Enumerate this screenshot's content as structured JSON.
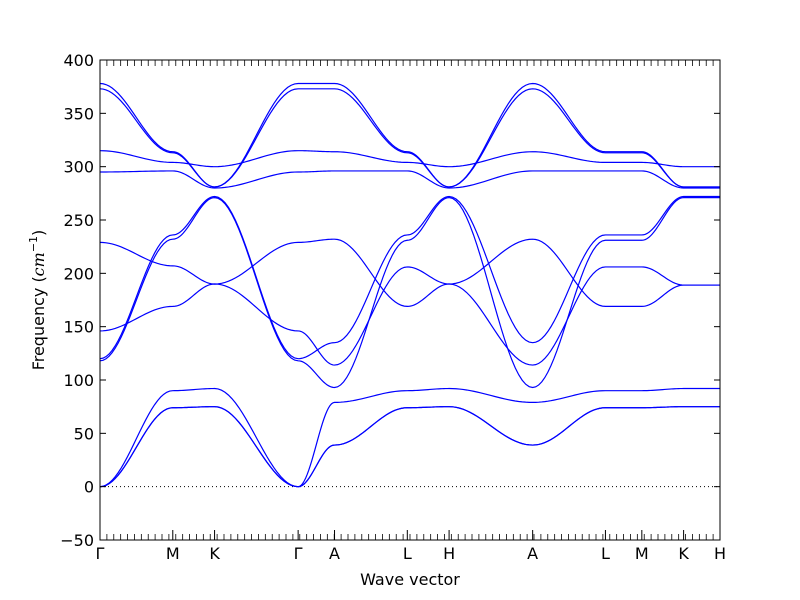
{
  "chart_data": {
    "type": "line",
    "title": "",
    "xlabel": "Wave vector",
    "ylabel": {
      "prefix": "Frequency (",
      "unit": "cm",
      "unit_exp": "−1",
      "suffix": ")"
    },
    "ylim": [
      -50,
      400
    ],
    "yticks": [
      -50,
      0,
      50,
      100,
      150,
      200,
      250,
      300,
      350,
      400
    ],
    "ytick_labels": [
      "−50",
      "0",
      "50",
      "100",
      "150",
      "200",
      "250",
      "300",
      "350",
      "400"
    ],
    "x_points": [
      {
        "label": "Γ",
        "x": 0
      },
      {
        "label": "M",
        "x": 0.54
      },
      {
        "label": "K",
        "x": 0.85
      },
      {
        "label": "Γ",
        "x": 1.47
      },
      {
        "label": "A",
        "x": 1.74
      },
      {
        "label": "L",
        "x": 2.28
      },
      {
        "label": "H",
        "x": 2.59
      },
      {
        "label": "A",
        "x": 3.21
      },
      {
        "label": "L",
        "x": 3.75
      },
      {
        "label": "M",
        "x": 4.02
      },
      {
        "label": "K",
        "x": 4.33
      },
      {
        "label": "H",
        "x": 4.6
      }
    ],
    "xlim": [
      0,
      4.6
    ],
    "zero_line": true,
    "line_color": "#0000ff",
    "zero_line_color": "#000000",
    "series": [
      {
        "x": [
          0,
          0.54,
          0.85,
          1.47,
          1.74,
          2.28,
          2.59,
          3.21,
          3.75,
          4.02,
          4.33,
          4.6
        ],
        "values": [
          0,
          74,
          75,
          0,
          39,
          74,
          75,
          39,
          74,
          74,
          75,
          75
        ]
      },
      {
        "x": [
          0,
          0.54,
          0.85,
          1.47,
          1.74,
          2.28,
          2.59,
          3.21,
          3.75,
          4.02,
          4.33,
          4.6
        ],
        "values": [
          0,
          74,
          75,
          0,
          79,
          90,
          92,
          79,
          90,
          90,
          92,
          92
        ]
      },
      {
        "x": [
          0,
          0.54,
          0.85,
          1.47,
          1.74,
          2.28,
          2.59,
          3.21,
          3.75,
          4.02,
          4.33,
          4.6
        ],
        "values": [
          0,
          90,
          92,
          0,
          39,
          74,
          75,
          39,
          74,
          74,
          75,
          75
        ]
      },
      {
        "x": [
          0,
          0.54,
          0.85,
          1.47,
          1.74,
          2.28,
          2.59,
          3.21,
          3.75,
          4.02,
          4.33,
          4.6
        ],
        "values": [
          118,
          232,
          271,
          118,
          93,
          231,
          271,
          93,
          231,
          231,
          271,
          271
        ]
      },
      {
        "x": [
          0,
          0.54,
          0.85,
          1.47,
          1.74,
          2.28,
          2.59,
          3.21,
          3.75,
          4.02,
          4.33,
          4.6
        ],
        "values": [
          120,
          236,
          272,
          120,
          135,
          236,
          272,
          135,
          236,
          236,
          272,
          272
        ]
      },
      {
        "x": [
          0,
          0.54,
          0.85,
          1.47,
          1.74,
          2.28,
          2.59,
          3.21,
          3.75,
          4.02,
          4.33,
          4.6
        ],
        "values": [
          146,
          169,
          190,
          146,
          114,
          206,
          190,
          114,
          206,
          206,
          189,
          189
        ]
      },
      {
        "x": [
          0,
          0.54,
          0.85,
          1.47,
          1.74,
          2.28,
          2.59,
          3.21,
          3.75,
          4.02,
          4.33,
          4.6
        ],
        "values": [
          229,
          207,
          190,
          229,
          232,
          169,
          190,
          232,
          169,
          169,
          189,
          189
        ]
      },
      {
        "x": [
          0,
          0.54,
          0.85,
          1.47,
          1.74,
          2.28,
          2.59,
          3.21,
          3.75,
          4.02,
          4.33,
          4.6
        ],
        "values": [
          295,
          296,
          280,
          295,
          296,
          296,
          280,
          296,
          296,
          296,
          280,
          280
        ]
      },
      {
        "x": [
          0,
          0.54,
          0.85,
          1.47,
          1.74,
          2.28,
          2.59,
          3.21,
          3.75,
          4.02,
          4.33,
          4.6
        ],
        "values": [
          315,
          304,
          300,
          315,
          314,
          304,
          300,
          314,
          304,
          304,
          300,
          300
        ]
      },
      {
        "x": [
          0,
          0.54,
          0.85,
          1.47,
          1.74,
          2.28,
          2.59,
          3.21,
          3.75,
          4.02,
          4.33,
          4.6
        ],
        "values": [
          373,
          313,
          281,
          373,
          373,
          313,
          281,
          373,
          313,
          313,
          281,
          281
        ]
      },
      {
        "x": [
          0,
          0.54,
          0.85,
          1.47,
          1.74,
          2.28,
          2.59,
          3.21,
          3.75,
          4.02,
          4.33,
          4.6
        ],
        "values": [
          378,
          314,
          281,
          378,
          378,
          314,
          281,
          378,
          314,
          314,
          281,
          281
        ]
      }
    ]
  }
}
